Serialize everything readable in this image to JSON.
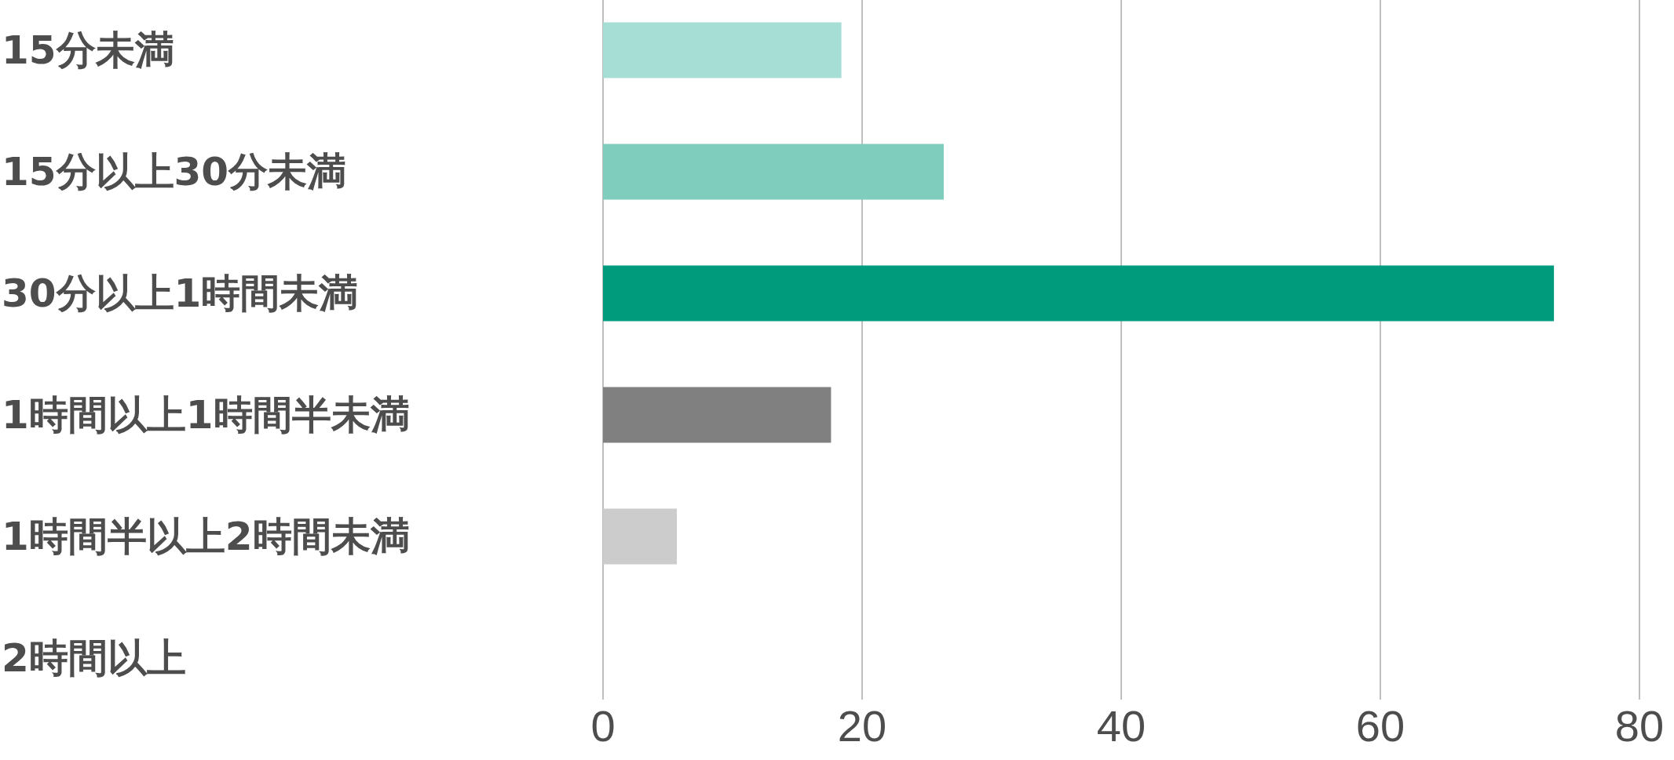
{
  "chart_data": {
    "type": "bar",
    "orientation": "horizontal",
    "categories": [
      "15分未満",
      "15分以上30分未満",
      "30分以上1時間未満",
      "1時間以上1時間半未満",
      "1時間半以上2時間未満",
      "2時間以上"
    ],
    "values": [
      18.4,
      26.3,
      73.4,
      17.6,
      5.7,
      0
    ],
    "colors": [
      "#a6ddd4",
      "#7ecdbd",
      "#009b7c",
      "#808080",
      "#cccccc",
      "#cccccc"
    ],
    "xlim": [
      0,
      80
    ],
    "xticks": [
      0,
      20,
      40,
      60,
      80
    ],
    "grid": "x"
  }
}
